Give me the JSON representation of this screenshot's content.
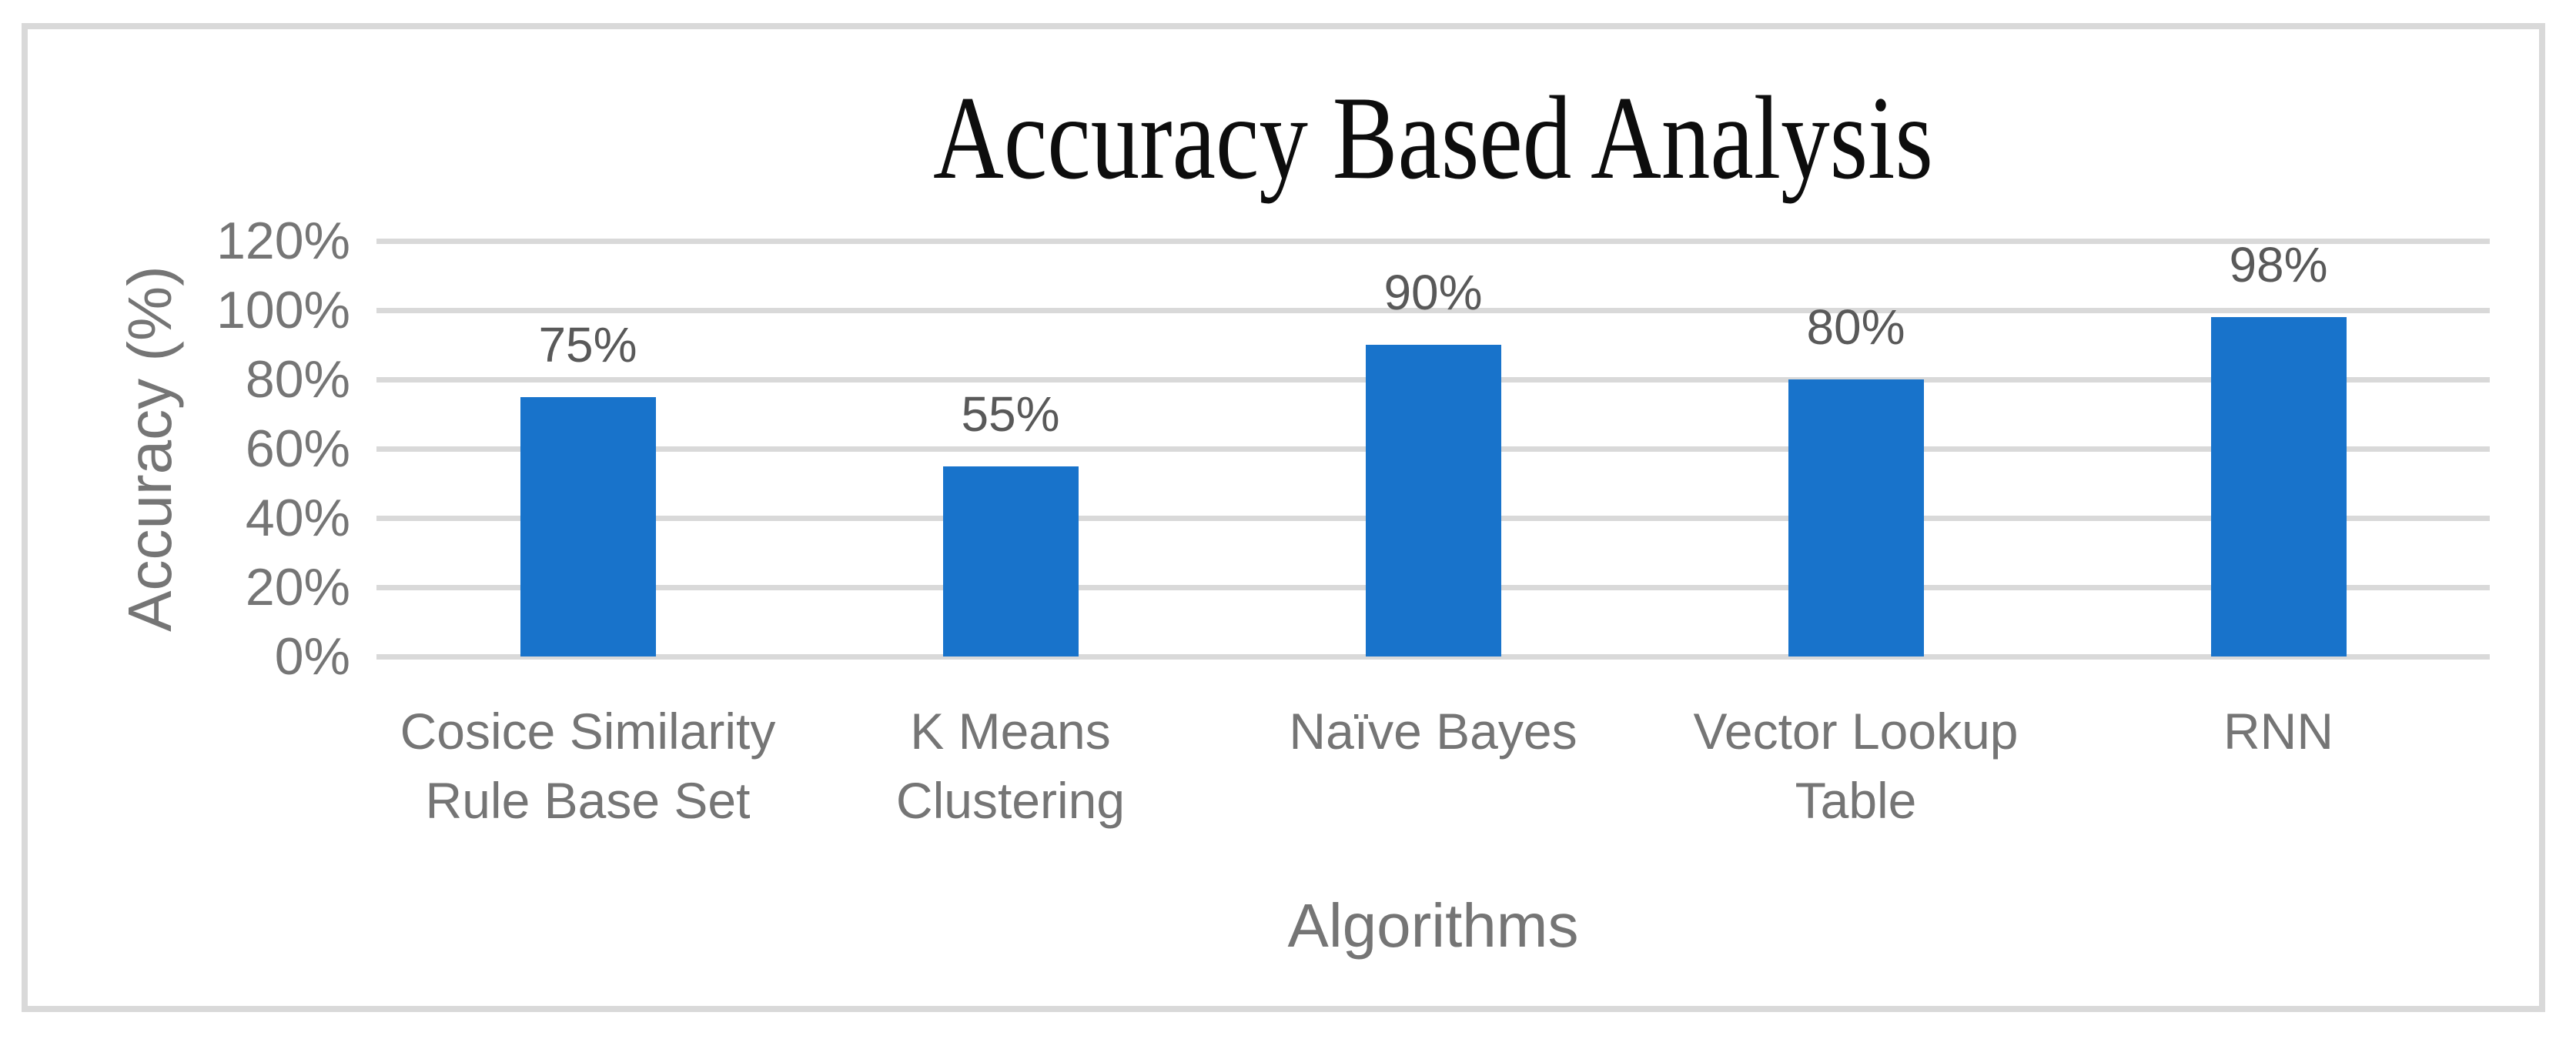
{
  "chart_data": {
    "type": "bar",
    "title": "Accuracy Based Analysis",
    "xlabel": "Algorithms",
    "ylabel": "Accuracy (%)",
    "categories": [
      "Cosice Similarity Rule Base Set",
      "K Means Clustering",
      "Naïve Bayes",
      "Vector Lookup Table",
      "RNN"
    ],
    "category_lines": [
      [
        "Cosice Similarity",
        "Rule Base Set"
      ],
      [
        "K Means",
        "Clustering"
      ],
      [
        "Naïve Bayes"
      ],
      [
        "Vector Lookup",
        "Table"
      ],
      [
        "RNN"
      ]
    ],
    "values": [
      75,
      55,
      90,
      80,
      98
    ],
    "data_labels": [
      "75%",
      "55%",
      "90%",
      "80%",
      "98%"
    ],
    "ylim": [
      0,
      120
    ],
    "ytick_step": 20,
    "ytick_labels_top_to_bottom": [
      "120%",
      "100%",
      "80%",
      "60%",
      "40%",
      "20%",
      "0%"
    ],
    "grid": true,
    "legend": "none",
    "colors": {
      "bar": "#1873cb",
      "gridline": "#d9d9d9",
      "frame_border": "#d9d9d9",
      "axis_text": "#757575",
      "data_label_text": "#595959",
      "title_text": "#0d0d0d",
      "background": "#ffffff"
    }
  }
}
